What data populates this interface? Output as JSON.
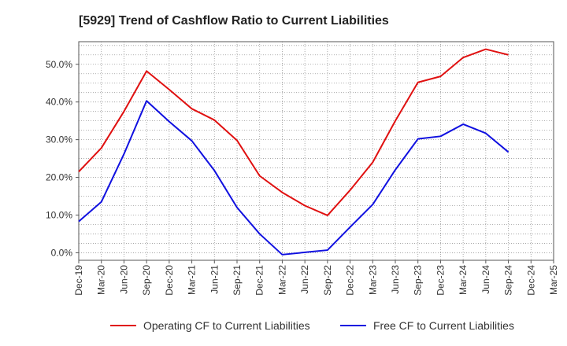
{
  "chart_data": {
    "type": "line",
    "title": "[5929]  Trend of Cashflow Ratio to Current Liabilities",
    "xlabel": "",
    "ylabel": "",
    "categories": [
      "Dec-19",
      "Mar-20",
      "Jun-20",
      "Sep-20",
      "Dec-20",
      "Mar-21",
      "Jun-21",
      "Sep-21",
      "Dec-21",
      "Mar-22",
      "Jun-22",
      "Sep-22",
      "Dec-22",
      "Mar-23",
      "Jun-23",
      "Sep-23",
      "Dec-23",
      "Mar-24",
      "Jun-24",
      "Sep-24",
      "Dec-24",
      "Mar-25"
    ],
    "ylim": [
      -2,
      56
    ],
    "yticks": [
      0,
      10,
      20,
      30,
      40,
      50
    ],
    "ytick_labels": [
      "0.0%",
      "10.0%",
      "20.0%",
      "30.0%",
      "40.0%",
      "50.0%"
    ],
    "grid": true,
    "legend_position": "bottom",
    "series": [
      {
        "name": "Operating CF to Current Liabilities",
        "color": "#e01010",
        "values": [
          21.5,
          27.8,
          37.5,
          48.2,
          43.3,
          38.2,
          35.2,
          29.8,
          20.4,
          16.0,
          12.5,
          9.9,
          16.6,
          24.0,
          35.0,
          45.2,
          46.8,
          51.8,
          54.0,
          52.5,
          null,
          null
        ]
      },
      {
        "name": "Free CF to Current Liabilities",
        "color": "#1010e0",
        "values": [
          8.3,
          13.5,
          26.2,
          40.3,
          34.8,
          29.7,
          21.8,
          12.0,
          5.0,
          -0.5,
          0.1,
          0.7,
          6.8,
          12.8,
          22.0,
          30.2,
          30.9,
          34.1,
          31.7,
          26.7,
          null,
          null
        ]
      }
    ]
  }
}
